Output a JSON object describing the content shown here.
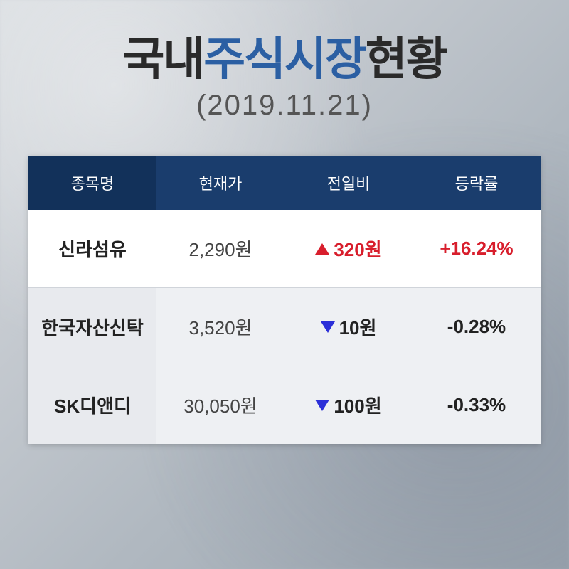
{
  "title": {
    "part1": "국내",
    "accent": "주식시장",
    "part2": "현황",
    "title_fontsize": 64,
    "title_color": "#2a2a2a",
    "accent_color": "#2b5fa3"
  },
  "subtitle": {
    "text": "(2019.11.21)",
    "fontsize": 40,
    "color": "#555555"
  },
  "table": {
    "type": "table",
    "header_bg": "#1a3d6d",
    "header_first_bg": "#12315a",
    "header_text_color": "#ffffff",
    "row_bg_odd": "#ffffff",
    "row_bg_even": "#eef0f3",
    "name_col_bg": "#e8eaee",
    "border_color": "#d0d4da",
    "up_color": "#d81e2c",
    "down_triangle_color": "#2b2fd8",
    "text_color": "#333333",
    "columns": [
      "종목명",
      "현재가",
      "전일비",
      "등락률"
    ],
    "rows": [
      {
        "name": "신라섬유",
        "price": "2,290원",
        "direction": "up",
        "change": "320원",
        "rate": "+16.24%"
      },
      {
        "name": "한국자산신탁",
        "price": "3,520원",
        "direction": "down",
        "change": "10원",
        "rate": "-0.28%"
      },
      {
        "name": "SK디앤디",
        "price": "30,050원",
        "direction": "down",
        "change": "100원",
        "rate": "-0.33%"
      }
    ]
  }
}
